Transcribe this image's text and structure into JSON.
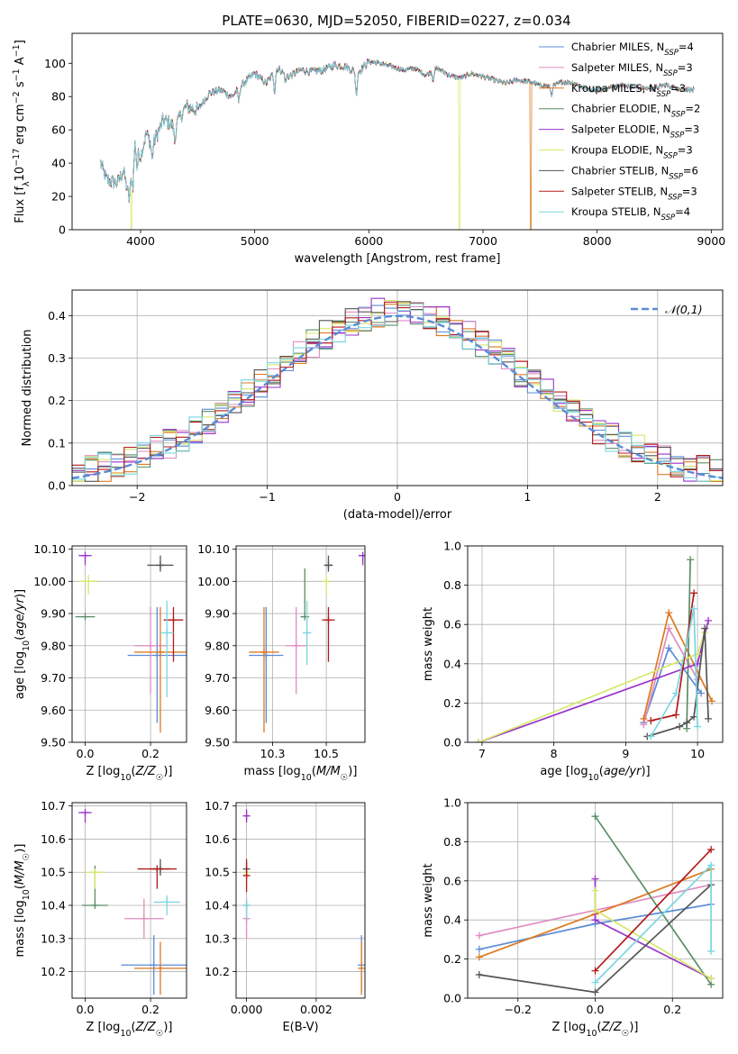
{
  "figure": {
    "title": "PLATE=0630, MJD=52050, FIBERID=0227, z=0.034"
  },
  "colors": {
    "Chabrier MILES": "#5b8bd6",
    "Salpeter MILES": "#e08cc0",
    "Kroupa MILES": "#dd7a22",
    "Chabrier ELODIE": "#5b8d66",
    "Salpeter ELODIE": "#9a33c8",
    "Kroupa ELODIE": "#d6e86a",
    "Chabrier STELIB": "#555555",
    "Salpeter STELIB": "#b31b1b",
    "Kroupa STELIB": "#7ad6e0",
    "normal": "#5b8bd6",
    "grid": "#b0b0b0"
  },
  "chart_data": [
    {
      "type": "line",
      "id": "spectrum",
      "xlabel": "wavelength [Angstrom, rest frame]",
      "ylabel": "Flux [f_λ10^-17 erg cm^-2 s^-1 A^-1]",
      "xlim": [
        3400,
        9100
      ],
      "ylim": [
        0,
        118
      ],
      "xticks": [
        4000,
        5000,
        6000,
        7000,
        8000,
        9000
      ],
      "yticks": [
        0,
        20,
        40,
        60,
        80,
        100
      ],
      "grid": false,
      "legend_position": "top-right",
      "x_range": [
        3650,
        8850
      ],
      "spectrum_anchors": [
        [
          3650,
          40
        ],
        [
          3700,
          30
        ],
        [
          3800,
          28
        ],
        [
          3850,
          36
        ],
        [
          3900,
          18
        ],
        [
          3950,
          52
        ],
        [
          4000,
          44
        ],
        [
          4050,
          58
        ],
        [
          4100,
          50
        ],
        [
          4200,
          66
        ],
        [
          4300,
          62
        ],
        [
          4400,
          74
        ],
        [
          4500,
          72
        ],
        [
          4600,
          82
        ],
        [
          4700,
          84
        ],
        [
          4800,
          80
        ],
        [
          4900,
          88
        ],
        [
          5000,
          94
        ],
        [
          5100,
          88
        ],
        [
          5200,
          97
        ],
        [
          5300,
          92
        ],
        [
          5400,
          96
        ],
        [
          5500,
          95
        ],
        [
          5600,
          96
        ],
        [
          5700,
          99
        ],
        [
          5800,
          98
        ],
        [
          5900,
          94
        ],
        [
          6000,
          101
        ],
        [
          6100,
          100
        ],
        [
          6200,
          98
        ],
        [
          6300,
          96
        ],
        [
          6400,
          97
        ],
        [
          6500,
          93
        ],
        [
          6600,
          97
        ],
        [
          6700,
          93
        ],
        [
          6800,
          91
        ],
        [
          6900,
          94
        ],
        [
          7000,
          92
        ],
        [
          7100,
          90
        ],
        [
          7200,
          88
        ],
        [
          7300,
          90
        ],
        [
          7400,
          89
        ],
        [
          7500,
          87
        ],
        [
          7600,
          86
        ],
        [
          7700,
          89
        ],
        [
          7800,
          88
        ],
        [
          7900,
          85
        ],
        [
          8000,
          84
        ],
        [
          8100,
          85
        ],
        [
          8200,
          87
        ],
        [
          8300,
          86
        ],
        [
          8400,
          85
        ],
        [
          8500,
          85
        ],
        [
          8600,
          87
        ],
        [
          8700,
          85
        ],
        [
          8850,
          84
        ]
      ],
      "series": [
        {
          "name": "Chabrier MILES, N_SSP=4"
        },
        {
          "name": "Salpeter MILES, N_SSP=3"
        },
        {
          "name": "Kroupa MILES, N_SSP=3"
        },
        {
          "name": "Chabrier ELODIE, N_SSP=2"
        },
        {
          "name": "Salpeter ELODIE, N_SSP=3"
        },
        {
          "name": "Kroupa ELODIE, N_SSP=3"
        },
        {
          "name": "Chabrier STELIB, N_SSP=6"
        },
        {
          "name": "Salpeter STELIB, N_SSP=3"
        },
        {
          "name": "Kroupa STELIB, N_SSP=4"
        }
      ],
      "drops": [
        [
          7420,
          "Kroupa MILES"
        ],
        [
          6795,
          "Kroupa ELODIE"
        ],
        [
          3920,
          "Kroupa ELODIE"
        ]
      ]
    },
    {
      "type": "line",
      "id": "residuals",
      "xlabel": "(data-model)/error",
      "ylabel": "Normed distribution",
      "xlim": [
        -2.5,
        2.5
      ],
      "ylim": [
        0,
        0.46
      ],
      "xticks": [
        -2,
        -1,
        0,
        1,
        2
      ],
      "yticks": [
        0.0,
        0.1,
        0.2,
        0.3,
        0.4
      ],
      "grid": true,
      "legend_position": "top-right",
      "bin_width": 0.1,
      "normal_label": "𝒩(0,1)"
    },
    {
      "type": "scatter",
      "id": "age-vs-Z",
      "xlabel": "Z [log10(Z/Z☉)]",
      "ylabel": "age [log10(age/yr)]",
      "xlim": [
        -0.04,
        0.31
      ],
      "ylim": [
        9.5,
        10.11
      ],
      "xticks": [
        0.0,
        0.2
      ],
      "yticks": [
        9.5,
        9.6,
        9.7,
        9.8,
        9.9,
        10.0,
        10.1
      ],
      "grid": true,
      "points": [
        {
          "model": "Chabrier MILES",
          "x": 0.22,
          "y": 9.77,
          "xerr": 0.09,
          "yerr": [
            0.21,
            0.15
          ]
        },
        {
          "model": "Salpeter MILES",
          "x": 0.2,
          "y": 9.8,
          "xerr": 0.05,
          "yerr": [
            0.15,
            0.12
          ]
        },
        {
          "model": "Kroupa MILES",
          "x": 0.23,
          "y": 9.78,
          "xerr": 0.08,
          "yerr": [
            0.25,
            0.14
          ]
        },
        {
          "model": "Chabrier ELODIE",
          "x": 0.0,
          "y": 9.89,
          "xerr": 0.03,
          "yerr": [
            0.0,
            0.0
          ]
        },
        {
          "model": "Salpeter ELODIE",
          "x": 0.0,
          "y": 10.08,
          "xerr": 0.02,
          "yerr": [
            0.03,
            0.0
          ]
        },
        {
          "model": "Kroupa ELODIE",
          "x": 0.01,
          "y": 10.0,
          "xerr": 0.03,
          "yerr": [
            0.04,
            0.02
          ]
        },
        {
          "model": "Chabrier STELIB",
          "x": 0.23,
          "y": 10.05,
          "xerr": 0.04,
          "yerr": [
            0.02,
            0.03
          ]
        },
        {
          "model": "Salpeter STELIB",
          "x": 0.27,
          "y": 9.88,
          "xerr": 0.03,
          "yerr": [
            0.13,
            0.04
          ]
        },
        {
          "model": "Kroupa STELIB",
          "x": 0.25,
          "y": 9.84,
          "xerr": 0.02,
          "yerr": [
            0.2,
            0.1
          ]
        }
      ]
    },
    {
      "type": "scatter",
      "id": "age-vs-mass",
      "xlabel": "mass [log10(M/M☉)]",
      "ylabel": "",
      "xlim": [
        10.08,
        10.68
      ],
      "ylim": [
        9.5,
        10.11
      ],
      "xticks": [
        10.25,
        10.5
      ],
      "yticks": [
        9.5,
        9.6,
        9.7,
        9.8,
        9.9,
        10.0,
        10.1
      ],
      "grid": true,
      "points": [
        {
          "model": "Chabrier MILES",
          "x": 10.22,
          "y": 9.77,
          "xerr": 0.08,
          "yerr": [
            0.21,
            0.15
          ]
        },
        {
          "model": "Salpeter MILES",
          "x": 10.36,
          "y": 9.8,
          "xerr": 0.05,
          "yerr": [
            0.15,
            0.12
          ]
        },
        {
          "model": "Kroupa MILES",
          "x": 10.21,
          "y": 9.78,
          "xerr": 0.07,
          "yerr": [
            0.25,
            0.14
          ]
        },
        {
          "model": "Chabrier ELODIE",
          "x": 10.4,
          "y": 9.89,
          "xerr": 0.02,
          "yerr": [
            0.0,
            0.15
          ]
        },
        {
          "model": "Salpeter ELODIE",
          "x": 10.67,
          "y": 10.08,
          "xerr": 0.02,
          "yerr": [
            0.03,
            0.0
          ]
        },
        {
          "model": "Kroupa ELODIE",
          "x": 10.5,
          "y": 10.0,
          "xerr": 0.01,
          "yerr": [
            0.04,
            0.02
          ]
        },
        {
          "model": "Chabrier STELIB",
          "x": 10.51,
          "y": 10.05,
          "xerr": 0.02,
          "yerr": [
            0.02,
            0.03
          ]
        },
        {
          "model": "Salpeter STELIB",
          "x": 10.51,
          "y": 9.88,
          "xerr": 0.03,
          "yerr": [
            0.13,
            0.04
          ]
        },
        {
          "model": "Kroupa STELIB",
          "x": 10.41,
          "y": 9.84,
          "xerr": 0.02,
          "yerr": [
            0.1,
            0.1
          ]
        }
      ]
    },
    {
      "type": "line",
      "id": "weight-vs-age",
      "xlabel": "age [log10(age/yr)]",
      "ylabel": "mass weight",
      "xlim": [
        6.8,
        10.35
      ],
      "ylim": [
        0.0,
        1.0
      ],
      "xticks": [
        7,
        8,
        9,
        10
      ],
      "yticks": [
        0.0,
        0.2,
        0.4,
        0.6,
        0.8,
        1.0
      ],
      "grid": true,
      "series": [
        {
          "model": "Chabrier MILES",
          "x": [
            9.25,
            9.6,
            10.05
          ],
          "y": [
            0.1,
            0.48,
            0.25
          ]
        },
        {
          "model": "Salpeter MILES",
          "x": [
            9.25,
            9.6,
            10.0
          ],
          "y": [
            0.09,
            0.58,
            0.32
          ]
        },
        {
          "model": "Kroupa MILES",
          "x": [
            9.25,
            9.6,
            10.2
          ],
          "y": [
            0.12,
            0.66,
            0.21
          ]
        },
        {
          "model": "Chabrier ELODIE",
          "x": [
            9.85,
            9.9
          ],
          "y": [
            0.07,
            0.93
          ]
        },
        {
          "model": "Salpeter ELODIE",
          "x": [
            6.95,
            10.0,
            10.15
          ],
          "y": [
            0.0,
            0.4,
            0.62
          ]
        },
        {
          "model": "Kroupa ELODIE",
          "x": [
            6.95,
            10.0,
            10.1
          ],
          "y": [
            0.0,
            0.45,
            0.56
          ]
        },
        {
          "model": "Chabrier STELIB",
          "x": [
            9.3,
            9.75,
            9.85,
            9.95,
            10.1,
            10.15
          ],
          "y": [
            0.03,
            0.08,
            0.1,
            0.13,
            0.58,
            0.12
          ]
        },
        {
          "model": "Salpeter STELIB",
          "x": [
            9.35,
            9.7,
            9.95
          ],
          "y": [
            0.11,
            0.14,
            0.76
          ]
        },
        {
          "model": "Kroupa STELIB",
          "x": [
            9.35,
            9.7,
            9.95,
            10.0
          ],
          "y": [
            0.03,
            0.25,
            0.68,
            0.08
          ]
        }
      ]
    },
    {
      "type": "scatter",
      "id": "mass-vs-Z",
      "xlabel": "Z [log10(Z/Z☉)]",
      "ylabel": "mass [log10(M/M☉)]",
      "xlim": [
        -0.04,
        0.31
      ],
      "ylim": [
        10.12,
        10.71
      ],
      "xticks": [
        0.0,
        0.2
      ],
      "yticks": [
        10.2,
        10.3,
        10.4,
        10.5,
        10.6,
        10.7
      ],
      "grid": true,
      "points": [
        {
          "model": "Chabrier MILES",
          "x": 0.21,
          "y": 10.22,
          "xerr": 0.1,
          "yerr": [
            0.09,
            0.09
          ]
        },
        {
          "model": "Salpeter MILES",
          "x": 0.18,
          "y": 10.36,
          "xerr": 0.06,
          "yerr": [
            0.06,
            0.06
          ]
        },
        {
          "model": "Kroupa MILES",
          "x": 0.23,
          "y": 10.21,
          "xerr": 0.08,
          "yerr": [
            0.08,
            0.08
          ]
        },
        {
          "model": "Chabrier ELODIE",
          "x": 0.03,
          "y": 10.4,
          "xerr": 0.04,
          "yerr": [
            0.0,
            0.12
          ]
        },
        {
          "model": "Salpeter ELODIE",
          "x": 0.0,
          "y": 10.68,
          "xerr": 0.02,
          "yerr": [
            0.03,
            0.0
          ]
        },
        {
          "model": "Kroupa ELODIE",
          "x": 0.03,
          "y": 10.5,
          "xerr": 0.03,
          "yerr": [
            0.05,
            0.0
          ]
        },
        {
          "model": "Chabrier STELIB",
          "x": 0.23,
          "y": 10.51,
          "xerr": 0.03,
          "yerr": [
            0.02,
            0.03
          ]
        },
        {
          "model": "Salpeter STELIB",
          "x": 0.22,
          "y": 10.51,
          "xerr": 0.06,
          "yerr": [
            0.06,
            0.0
          ]
        },
        {
          "model": "Kroupa STELIB",
          "x": 0.25,
          "y": 10.41,
          "xerr": 0.04,
          "yerr": [
            0.04,
            0.02
          ]
        }
      ]
    },
    {
      "type": "scatter",
      "id": "mass-vs-EBV",
      "xlabel": "E(B-V)",
      "ylabel": "",
      "xlim": [
        -0.0003,
        0.0034
      ],
      "ylim": [
        10.12,
        10.71
      ],
      "xticks": [
        0.0,
        0.002
      ],
      "xtick_labels": [
        "0.000",
        "0.002"
      ],
      "yticks": [
        10.2,
        10.3,
        10.4,
        10.5,
        10.6,
        10.7
      ],
      "grid": true,
      "points": [
        {
          "model": "Chabrier MILES",
          "x": 0.0033,
          "y": 10.22,
          "xerr": 0.0,
          "yerr": [
            0.08,
            0.09
          ]
        },
        {
          "model": "Salpeter MILES",
          "x": 0.0,
          "y": 10.36,
          "xerr": 0.0,
          "yerr": [
            0.06,
            0.06
          ]
        },
        {
          "model": "Kroupa MILES",
          "x": 0.0033,
          "y": 10.21,
          "xerr": 0.0,
          "yerr": [
            0.08,
            0.08
          ]
        },
        {
          "model": "Chabrier ELODIE",
          "x": 0.0,
          "y": 10.4,
          "xerr": 0.0,
          "yerr": [
            0.0,
            0.0
          ]
        },
        {
          "model": "Salpeter ELODIE",
          "x": 0.0,
          "y": 10.67,
          "xerr": 0.0,
          "yerr": [
            0.02,
            0.02
          ]
        },
        {
          "model": "Kroupa ELODIE",
          "x": 0.0,
          "y": 10.5,
          "xerr": 0.0,
          "yerr": [
            0.05,
            0.0
          ]
        },
        {
          "model": "Chabrier STELIB",
          "x": 0.0,
          "y": 10.51,
          "xerr": 0.0,
          "yerr": [
            0.02,
            0.02
          ]
        },
        {
          "model": "Salpeter STELIB",
          "x": 0.0,
          "y": 10.49,
          "xerr": 0.0,
          "yerr": [
            0.05,
            0.05
          ]
        },
        {
          "model": "Kroupa STELIB",
          "x": 0.0,
          "y": 10.4,
          "xerr": 0.0,
          "yerr": [
            0.04,
            0.02
          ]
        }
      ]
    },
    {
      "type": "line",
      "id": "weight-vs-Z",
      "xlabel": "Z [log10(Z/Z☉)]",
      "ylabel": "mass weight",
      "xlim": [
        -0.33,
        0.33
      ],
      "ylim": [
        0.0,
        1.0
      ],
      "xticks": [
        -0.2,
        0.0,
        0.2
      ],
      "yticks": [
        0.0,
        0.2,
        0.4,
        0.6,
        0.8,
        1.0
      ],
      "grid": true,
      "series": [
        {
          "model": "Chabrier MILES",
          "x": [
            -0.3,
            0.0,
            0.3
          ],
          "y": [
            0.25,
            0.38,
            0.48
          ]
        },
        {
          "model": "Salpeter MILES",
          "x": [
            -0.3,
            0.0,
            0.3
          ],
          "y": [
            0.32,
            0.45,
            0.58
          ]
        },
        {
          "model": "Kroupa MILES",
          "x": [
            -0.3,
            0.0,
            0.3
          ],
          "y": [
            0.21,
            0.43,
            0.66
          ]
        },
        {
          "model": "Chabrier ELODIE",
          "x": [
            0.0,
            0.3
          ],
          "y": [
            0.93,
            0.07
          ]
        },
        {
          "model": "Salpeter ELODIE",
          "x": [
            0.0,
            0.0,
            0.3
          ],
          "y": [
            0.61,
            0.4,
            0.1
          ]
        },
        {
          "model": "Kroupa ELODIE",
          "x": [
            0.0,
            0.0,
            0.3
          ],
          "y": [
            0.55,
            0.45,
            0.1
          ]
        },
        {
          "model": "Chabrier STELIB",
          "x": [
            -0.3,
            0.0,
            0.3
          ],
          "y": [
            0.12,
            0.03,
            0.58
          ]
        },
        {
          "model": "Salpeter STELIB",
          "x": [
            0.0,
            0.3
          ],
          "y": [
            0.14,
            0.76
          ]
        },
        {
          "model": "Kroupa STELIB",
          "x": [
            0.0,
            0.3,
            0.3
          ],
          "y": [
            0.08,
            0.68,
            0.24
          ]
        }
      ]
    }
  ]
}
